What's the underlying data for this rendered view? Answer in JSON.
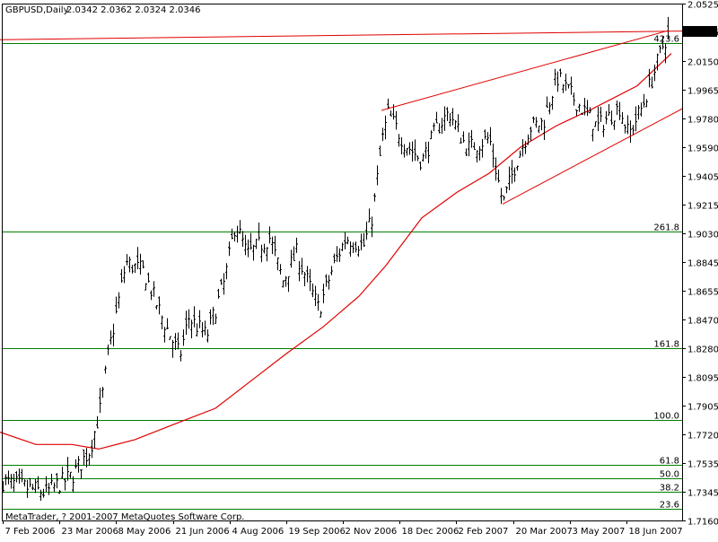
{
  "header": {
    "symbol": "GBPUSD,Daily",
    "ohlc": "2.0342 2.0362 2.0324 2.0346"
  },
  "copyright": "MetaTrader, ? 2001-2007 MetaQuotes Software Corp.",
  "current_price_label": "2.0346",
  "colors": {
    "background": "#ffffff",
    "candles": "#000000",
    "moving_average": "#e00000",
    "trendline": "#e00000",
    "fibo": "#008000",
    "price_tag_bg": "#000000",
    "price_tag_text": "#ffffff"
  },
  "chart_data": {
    "type": "ohlc",
    "y_ticks": [
      "2.0525",
      "2.0346",
      "2.0150",
      "1.9965",
      "1.9780",
      "1.9590",
      "1.9405",
      "1.9215",
      "1.9030",
      "1.8845",
      "1.8655",
      "1.8470",
      "1.8280",
      "1.8095",
      "1.7905",
      "1.7720",
      "1.7535",
      "1.7345",
      "1.7160"
    ],
    "x_ticks": [
      "7 Feb 2006",
      "23 Mar 2006",
      "8 May 2006",
      "21 Jun 2006",
      "4 Aug 2006",
      "19 Sep 2006",
      "2 Nov 2006",
      "18 Dec 2006",
      "2 Feb 2007",
      "20 Mar 2007",
      "3 May 2007",
      "18 Jun 2007"
    ],
    "ylim": [
      1.716,
      2.0525
    ],
    "grid": false,
    "price_path": [
      [
        0,
        1.742
      ],
      [
        50,
        1.734
      ],
      [
        80,
        1.745
      ],
      [
        100,
        1.762
      ],
      [
        112,
        1.79
      ],
      [
        120,
        1.823
      ],
      [
        140,
        1.884
      ],
      [
        160,
        1.878
      ],
      [
        180,
        1.848
      ],
      [
        200,
        1.823
      ],
      [
        210,
        1.848
      ],
      [
        230,
        1.836
      ],
      [
        250,
        1.872
      ],
      [
        262,
        1.91
      ],
      [
        275,
        1.889
      ],
      [
        300,
        1.9
      ],
      [
        315,
        1.872
      ],
      [
        330,
        1.89
      ],
      [
        355,
        1.853
      ],
      [
        370,
        1.88
      ],
      [
        385,
        1.9
      ],
      [
        405,
        1.895
      ],
      [
        415,
        1.915
      ],
      [
        425,
        1.962
      ],
      [
        432,
        1.981
      ],
      [
        450,
        1.962
      ],
      [
        470,
        1.95
      ],
      [
        485,
        1.97
      ],
      [
        500,
        1.982
      ],
      [
        520,
        1.958
      ],
      [
        545,
        1.965
      ],
      [
        560,
        1.922
      ],
      [
        575,
        1.95
      ],
      [
        590,
        1.972
      ],
      [
        605,
        1.975
      ],
      [
        620,
        2.005
      ],
      [
        640,
        1.99
      ],
      [
        665,
        1.972
      ],
      [
        690,
        1.985
      ],
      [
        700,
        1.967
      ],
      [
        715,
        1.985
      ],
      [
        730,
        2.01
      ],
      [
        738,
        2.025
      ],
      [
        745,
        2.034
      ]
    ],
    "moving_average": [
      [
        0,
        1.7735
      ],
      [
        40,
        1.7655
      ],
      [
        80,
        1.7655
      ],
      [
        110,
        1.7625
      ],
      [
        150,
        1.7685
      ],
      [
        200,
        1.78
      ],
      [
        240,
        1.789
      ],
      [
        280,
        1.807
      ],
      [
        320,
        1.825
      ],
      [
        360,
        1.842
      ],
      [
        400,
        1.862
      ],
      [
        430,
        1.882
      ],
      [
        470,
        1.913
      ],
      [
        510,
        1.93
      ],
      [
        545,
        1.942
      ],
      [
        580,
        1.959
      ],
      [
        620,
        1.973
      ],
      [
        660,
        1.984
      ],
      [
        710,
        1.999
      ],
      [
        748,
        2.02
      ]
    ],
    "trendlines": [
      {
        "from": [
          425,
          1.983
        ],
        "to": [
          745,
          2.035
        ]
      },
      {
        "from": [
          560,
          1.922
        ],
        "to": [
          760,
          1.984
        ]
      },
      {
        "from": [
          0,
          2.029
        ],
        "to": [
          760,
          2.0346
        ]
      }
    ],
    "fibo_levels": [
      {
        "label": "423.6",
        "price": 2.027
      },
      {
        "label": "261.8",
        "price": 1.904
      },
      {
        "label": "161.8",
        "price": 1.828
      },
      {
        "label": "100.0",
        "price": 1.7812
      },
      {
        "label": "61.8",
        "price": 1.7525
      },
      {
        "label": "50.0",
        "price": 1.7435
      },
      {
        "label": "38.2",
        "price": 1.7345
      },
      {
        "label": "23.6",
        "price": 1.7235
      }
    ]
  }
}
